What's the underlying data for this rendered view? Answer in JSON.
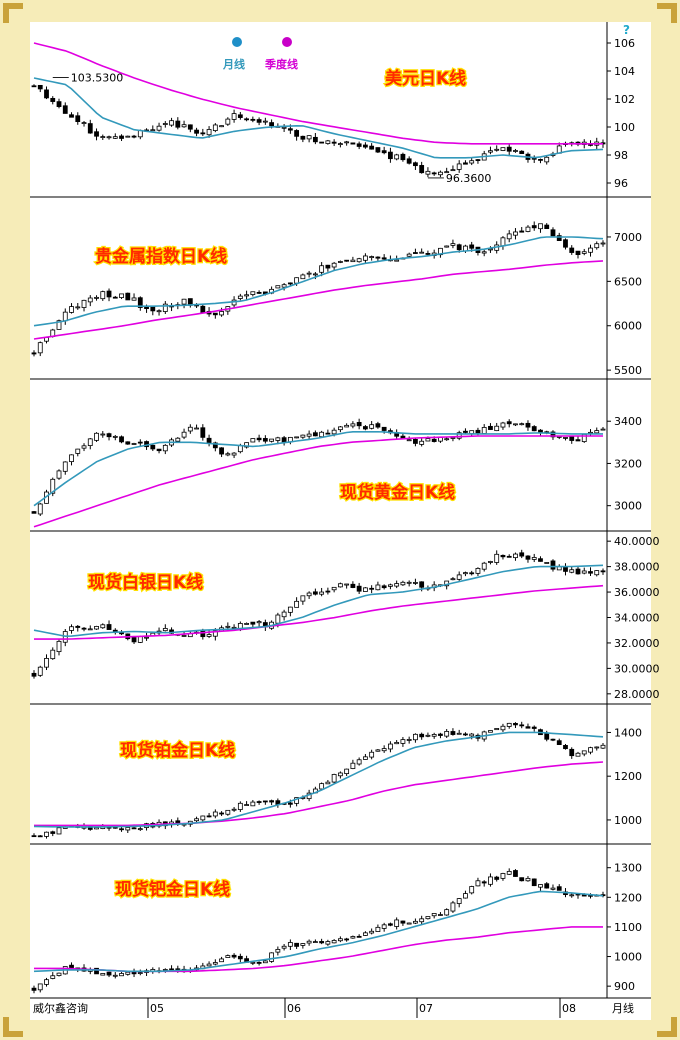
{
  "colors": {
    "frame": "#f6ecb8",
    "month_line": "#3399bb",
    "quarter_line": "#e000e0",
    "title_fill": "#ff2a00",
    "title_stroke": "#ffe000",
    "candle": "#000000"
  },
  "legend": {
    "month_label": "月线",
    "quarter_label": "季度线",
    "month_color": "#3399bb",
    "quarter_color": "#d400d4"
  },
  "footer": {
    "source": "威尔鑫咨询",
    "months": [
      "05",
      "06",
      "07",
      "08"
    ],
    "period": "月线"
  },
  "help_icon": "question-icon",
  "chart_data": [
    {
      "type": "candlestick",
      "title": "美元日K线",
      "y_ticks": [
        96,
        98,
        100,
        102,
        104,
        106
      ],
      "y_tick_labels": [
        "96",
        "98",
        "100",
        "102",
        "104",
        "106"
      ],
      "ylim": [
        95,
        107.5
      ],
      "close_anchors": [
        103.0,
        101.0,
        99.2,
        99.5,
        100.4,
        99.5,
        100.8,
        100.3,
        99.3,
        98.9,
        98.4,
        97.7,
        96.4,
        97.5,
        98.5,
        97.6,
        98.9,
        98.7
      ],
      "month_anchors": [
        103.5,
        103.0,
        100.7,
        99.8,
        99.5,
        99.2,
        99.7,
        100.0,
        100.1,
        99.5,
        99.0,
        98.5,
        97.8,
        97.8,
        98.0,
        97.8,
        98.3,
        98.4
      ],
      "quarter_anchors": [
        106.0,
        105.4,
        104.4,
        103.5,
        102.7,
        102.0,
        101.4,
        100.9,
        100.4,
        100.0,
        99.6,
        99.2,
        98.9,
        98.8,
        98.8,
        98.8,
        98.8,
        98.8
      ],
      "annotations": [
        {
          "text": "103.5300",
          "x_frac": 0.03
        },
        {
          "text": "96.3600",
          "x_frac": 0.69
        }
      ],
      "seed": 11
    },
    {
      "type": "candlestick",
      "title": "贵金属指数日K线",
      "y_ticks": [
        5500,
        6000,
        6500,
        7000
      ],
      "y_tick_labels": [
        "5500",
        "6000",
        "6500",
        "7000"
      ],
      "ylim": [
        5400,
        7450
      ],
      "close_anchors": [
        5700,
        6150,
        6350,
        6350,
        6150,
        6300,
        6100,
        6350,
        6400,
        6550,
        6700,
        6800,
        6750,
        6800,
        6900,
        6850,
        7050,
        7150,
        6800,
        6950
      ],
      "month_anchors": [
        6000,
        6050,
        6150,
        6220,
        6220,
        6230,
        6250,
        6280,
        6380,
        6500,
        6620,
        6700,
        6750,
        6780,
        6830,
        6860,
        6920,
        7000,
        7000,
        6980
      ],
      "quarter_anchors": [
        5850,
        5900,
        5950,
        6000,
        6060,
        6110,
        6160,
        6220,
        6280,
        6340,
        6400,
        6450,
        6490,
        6530,
        6580,
        6610,
        6640,
        6680,
        6710,
        6730
      ],
      "annotations": [],
      "seed": 23
    },
    {
      "type": "candlestick",
      "title": "现货黄金日K线",
      "y_ticks": [
        3000,
        3200,
        3400
      ],
      "y_tick_labels": [
        "3000",
        "3200",
        "3400"
      ],
      "ylim": [
        2880,
        3600
      ],
      "close_anchors": [
        2970,
        3220,
        3350,
        3300,
        3270,
        3380,
        3230,
        3320,
        3310,
        3340,
        3380,
        3370,
        3300,
        3320,
        3350,
        3390,
        3360,
        3300,
        3370
      ],
      "month_anchors": [
        3000,
        3110,
        3210,
        3270,
        3300,
        3300,
        3290,
        3280,
        3300,
        3320,
        3350,
        3350,
        3340,
        3340,
        3340,
        3340,
        3345,
        3340,
        3340
      ],
      "quarter_anchors": [
        2900,
        2950,
        3000,
        3050,
        3100,
        3140,
        3180,
        3220,
        3250,
        3280,
        3300,
        3310,
        3320,
        3325,
        3330,
        3330,
        3330,
        3330,
        3330
      ],
      "annotations": [],
      "seed": 37
    },
    {
      "type": "candlestick",
      "title": "现货白银日K线",
      "y_ticks": [
        28,
        30,
        32,
        34,
        36,
        38,
        40
      ],
      "y_tick_labels": [
        "28.0000",
        "30.0000",
        "32.0000",
        "34.0000",
        "36.0000",
        "38.0000",
        "40.0000"
      ],
      "ylim": [
        27.2,
        40.8
      ],
      "close_anchors": [
        29.5,
        33.0,
        33.3,
        32.3,
        33.0,
        32.5,
        33.3,
        33.5,
        35.5,
        36.5,
        36.2,
        37.0,
        36.3,
        37.5,
        39.0,
        38.5,
        37.5,
        37.8
      ],
      "month_anchors": [
        33.0,
        32.5,
        32.8,
        32.9,
        32.8,
        33.0,
        33.1,
        33.3,
        34.0,
        35.0,
        35.8,
        36.0,
        36.4,
        37.0,
        37.6,
        38.0,
        38.0,
        38.1
      ],
      "quarter_anchors": [
        32.3,
        32.3,
        32.4,
        32.5,
        32.6,
        32.8,
        33.0,
        33.3,
        33.6,
        34.0,
        34.5,
        34.9,
        35.2,
        35.5,
        35.8,
        36.1,
        36.3,
        36.5
      ],
      "annotations": [],
      "seed": 51
    },
    {
      "type": "candlestick",
      "title": "现货铂金日K线",
      "y_ticks": [
        1000,
        1200,
        1400
      ],
      "y_tick_labels": [
        "1000",
        "1200",
        "1400"
      ],
      "ylim": [
        890,
        1530
      ],
      "close_anchors": [
        930,
        960,
        970,
        965,
        980,
        990,
        1040,
        1090,
        1070,
        1150,
        1250,
        1330,
        1380,
        1400,
        1380,
        1440,
        1400,
        1300,
        1340
      ],
      "month_anchors": [
        970,
        968,
        968,
        970,
        975,
        985,
        1000,
        1040,
        1080,
        1130,
        1200,
        1270,
        1330,
        1360,
        1380,
        1400,
        1400,
        1390,
        1380
      ],
      "quarter_anchors": [
        975,
        975,
        975,
        975,
        980,
        985,
        995,
        1010,
        1030,
        1060,
        1090,
        1130,
        1160,
        1180,
        1200,
        1220,
        1240,
        1255,
        1265
      ],
      "annotations": [],
      "seed": 67
    },
    {
      "type": "candlestick",
      "title": "现货钯金日K线",
      "y_ticks": [
        900,
        1000,
        1100,
        1200,
        1300
      ],
      "y_tick_labels": [
        "900",
        "1000",
        "1100",
        "1200",
        "1300"
      ],
      "ylim": [
        860,
        1380
      ],
      "close_anchors": [
        890,
        960,
        950,
        940,
        960,
        950,
        1000,
        970,
        1040,
        1050,
        1060,
        1110,
        1120,
        1150,
        1250,
        1280,
        1240,
        1210,
        1200
      ],
      "month_anchors": [
        950,
        955,
        955,
        950,
        950,
        955,
        970,
        985,
        1000,
        1025,
        1045,
        1070,
        1100,
        1130,
        1160,
        1200,
        1220,
        1215,
        1205
      ],
      "quarter_anchors": [
        960,
        960,
        955,
        950,
        950,
        950,
        955,
        960,
        970,
        985,
        1000,
        1020,
        1040,
        1055,
        1065,
        1080,
        1090,
        1100,
        1100
      ],
      "annotations": [],
      "seed": 83
    }
  ]
}
